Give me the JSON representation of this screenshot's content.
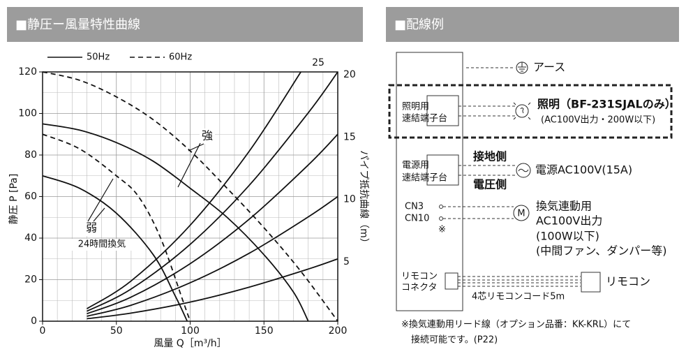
{
  "chart_data": {
    "type": "line",
    "header": "■静圧ー風量特性曲線",
    "xlabel": "風量 Q［m³/h］",
    "ylabel": "静圧 P [Pa]",
    "y2label": "パイプ抵抗曲線（m）",
    "xlim": [
      0,
      200
    ],
    "ylim": [
      0,
      120
    ],
    "xticks": [
      0,
      50,
      100,
      150,
      200
    ],
    "yticks": [
      0,
      20,
      40,
      60,
      80,
      100,
      120
    ],
    "grid": true,
    "legend": [
      {
        "label": "50Hz",
        "dash": "solid"
      },
      {
        "label": "60Hz",
        "dash": "dashed"
      }
    ],
    "annotations": [
      "強",
      "弱",
      "24時間換気"
    ],
    "series": [
      {
        "dash": "solid",
        "color": "#111111",
        "x": [
          0,
          25,
          50,
          75,
          100,
          125,
          150,
          170,
          180
        ],
        "values": [
          95,
          92,
          86,
          77,
          64,
          50,
          32,
          14,
          0
        ]
      },
      {
        "dash": "solid",
        "color": "#111111",
        "x": [
          0,
          25,
          50,
          75,
          90,
          98
        ],
        "values": [
          70,
          64,
          52,
          32,
          12,
          0
        ]
      },
      {
        "dash": "dashed",
        "color": "#111111",
        "x": [
          0,
          25,
          50,
          75,
          100,
          125,
          150,
          175,
          200
        ],
        "values": [
          120,
          116,
          108,
          97,
          82,
          64,
          45,
          24,
          0
        ]
      },
      {
        "dash": "dashed",
        "color": "#111111",
        "x": [
          0,
          25,
          50,
          65,
          80,
          95,
          100
        ],
        "values": [
          90,
          83,
          70,
          60,
          40,
          10,
          0
        ]
      },
      {
        "name": "25",
        "dash": "solid",
        "color": "#111111",
        "x": [
          30,
          60,
          100,
          140,
          175
        ],
        "values": [
          6.0,
          19.4,
          46.2,
          81.8,
          120
        ]
      },
      {
        "name": "20",
        "dash": "solid",
        "color": "#111111",
        "x": [
          30,
          60,
          100,
          140,
          180,
          200
        ],
        "values": [
          4.8,
          15.5,
          37,
          65.4,
          100.3,
          120
        ]
      },
      {
        "name": "15",
        "dash": "solid",
        "color": "#111111",
        "x": [
          30,
          60,
          100,
          140,
          180,
          200
        ],
        "values": [
          3.6,
          11.6,
          27.7,
          49.1,
          75.2,
          90
        ]
      },
      {
        "name": "10",
        "dash": "solid",
        "color": "#111111",
        "x": [
          30,
          60,
          100,
          140,
          180,
          200
        ],
        "values": [
          2.4,
          7.7,
          18.5,
          32.7,
          50.2,
          60
        ]
      },
      {
        "name": "5",
        "dash": "solid",
        "color": "#111111",
        "x": [
          30,
          60,
          100,
          140,
          180,
          200
        ],
        "values": [
          1.2,
          3.9,
          9.2,
          16.4,
          25.1,
          30
        ]
      }
    ]
  },
  "wiring": {
    "header": "■配線例",
    "earth": "アース",
    "light_terminal": [
      "照明用",
      "速結端子台"
    ],
    "light": "照明（BF-231SJALのみ）",
    "light_note": "(AC100V出力・200W以下)",
    "power_terminal": [
      "電源用",
      "速結端子台"
    ],
    "ground_side": "接地側",
    "power": "電源AC100V(15A)",
    "voltage_side": "電圧側",
    "cn3": "CN3",
    "cn10": "CN10",
    "mark": "※",
    "motor": "M",
    "interlock": [
      "換気連動用",
      "AC100V出力",
      "(100W以下)",
      "(中間ファン、ダンパー等)"
    ],
    "remote_connector": [
      "リモコン",
      "コネクタ"
    ],
    "cord": "4芯リモコンコード5m",
    "remote": "リモコン",
    "footnote": [
      "※換気連動用リード線（オプション品番：KK-KRL）にて",
      "接続可能です。(P22)"
    ]
  }
}
